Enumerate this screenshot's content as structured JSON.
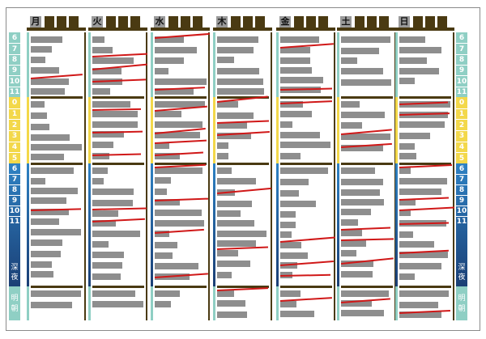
{
  "days": [
    "月",
    "火",
    "水",
    "木",
    "金",
    "土",
    "日"
  ],
  "hours_morning": [
    "6",
    "7",
    "8",
    "9",
    "10",
    "11"
  ],
  "hours_midday": [
    "0",
    "1",
    "2",
    "3",
    "4",
    "5"
  ],
  "hours_evening": [
    "6",
    "7",
    "8",
    "9",
    "10",
    "11"
  ],
  "late_night_label": [
    "深",
    "夜"
  ],
  "early_morning_label": [
    "明",
    "朝"
  ],
  "colors": {
    "teal": "#8fcfc4",
    "yellow": "#f3d84a",
    "blue_top": "#2e82c4",
    "blue_bottom": "#1b3f75",
    "brown": "#4a3a12",
    "cell_gray": "#8e8e8e",
    "strike_red": "#d01818"
  }
}
